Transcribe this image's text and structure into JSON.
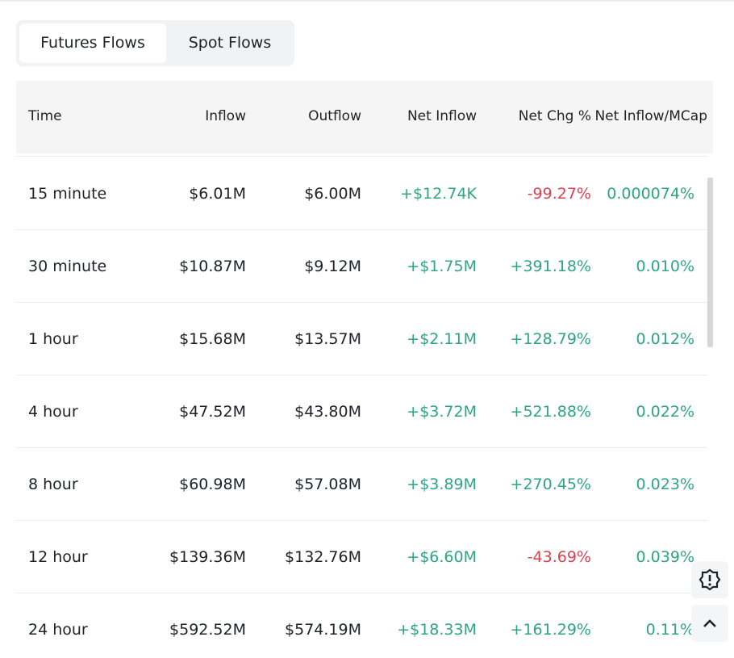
{
  "tabs": [
    "Futures Flows",
    "Spot Flows"
  ],
  "table": {
    "columns": [
      "Time",
      "Inflow",
      "Outflow",
      "Net Inflow",
      "Net Chg %",
      "Net Inflow/MCap"
    ],
    "rows": [
      [
        "15 minute",
        "$6.01M",
        "$6.00M",
        "+$12.74K",
        "-99.27%",
        "0.000074%"
      ],
      [
        "30 minute",
        "$10.87M",
        "$9.12M",
        "+$1.75M",
        "+391.18%",
        "0.010%"
      ],
      [
        "1 hour",
        "$15.68M",
        "$13.57M",
        "+$2.11M",
        "+128.79%",
        "0.012%"
      ],
      [
        "4 hour",
        "$47.52M",
        "$43.80M",
        "+$3.72M",
        "+521.88%",
        "0.022%"
      ],
      [
        "8 hour",
        "$60.98M",
        "$57.08M",
        "+$3.89M",
        "+270.45%",
        "0.023%"
      ],
      [
        "12 hour",
        "$139.36M",
        "$132.76M",
        "+$6.60M",
        "-43.69%",
        "0.039%"
      ],
      [
        "24 hour",
        "$592.52M",
        "$574.19M",
        "+$18.33M",
        "+161.29%",
        "0.11%"
      ]
    ]
  }
}
